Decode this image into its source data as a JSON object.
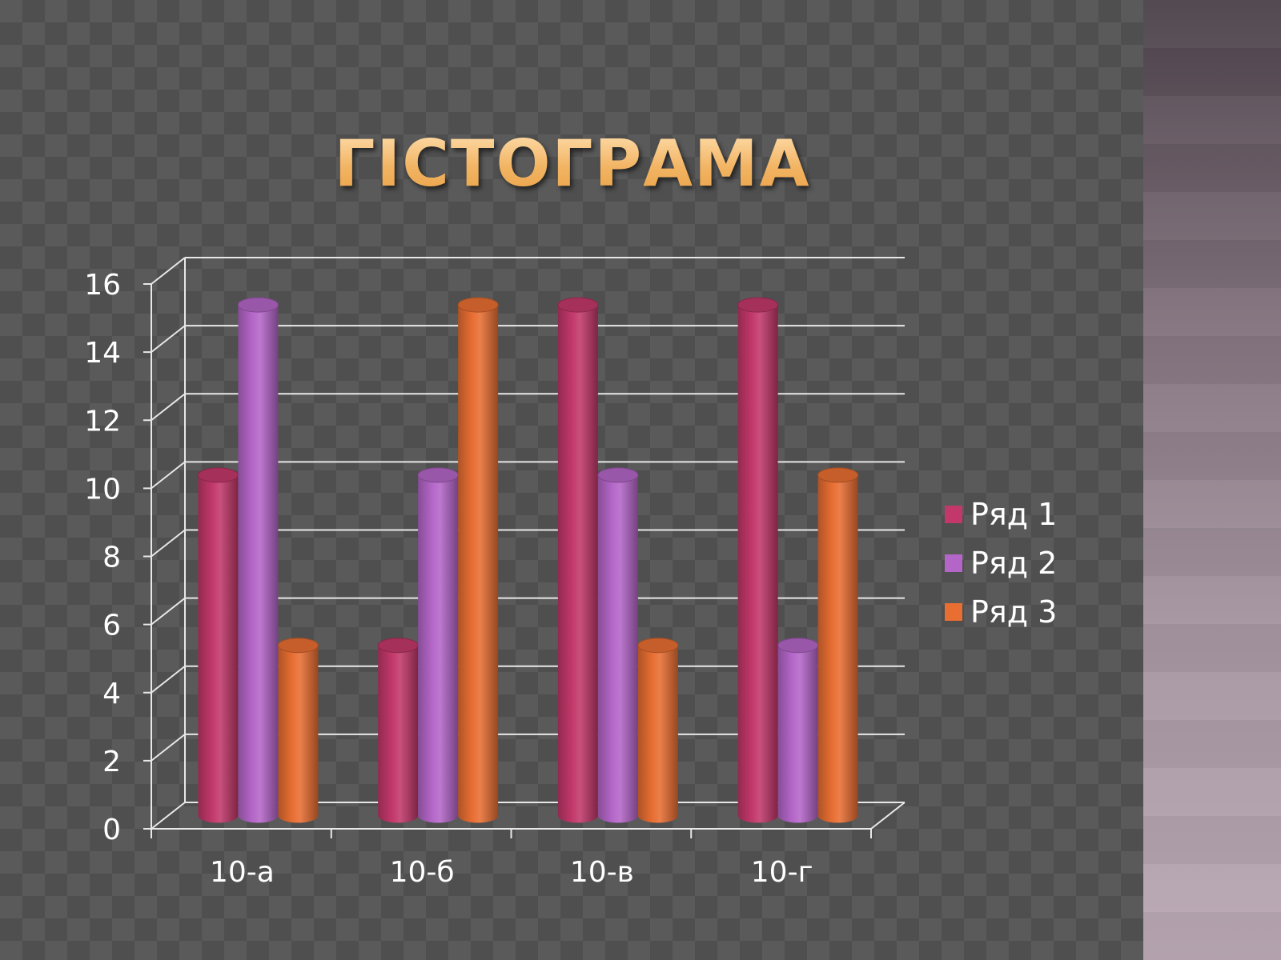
{
  "title": "ГІСТОГРАМА",
  "chart_data": {
    "type": "bar",
    "categories": [
      "10-а",
      "10-б",
      "10-в",
      "10-г"
    ],
    "series": [
      {
        "name": "Ряд 1",
        "values": [
          10,
          5,
          15,
          15
        ],
        "color": "#c2386a"
      },
      {
        "name": "Ряд 2",
        "values": [
          15,
          10,
          10,
          5
        ],
        "color": "#b466c8"
      },
      {
        "name": "Ряд 3",
        "values": [
          5,
          15,
          5,
          10
        ],
        "color": "#e86e32"
      }
    ],
    "yticks": [
      "0",
      "2",
      "4",
      "6",
      "8",
      "10",
      "12",
      "14",
      "16"
    ],
    "ylim": [
      0,
      16
    ],
    "grid": true,
    "legend_position": "right",
    "style": "3d-cylinder"
  }
}
